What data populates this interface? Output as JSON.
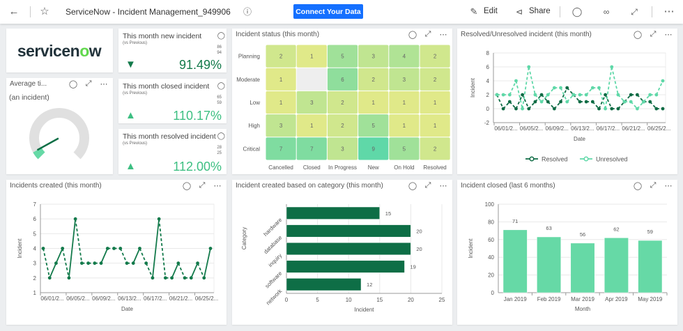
{
  "topbar": {
    "title": "ServiceNow - Incident Management_949906",
    "connect_label": "Connect Your Data",
    "edit_label": "Edit",
    "share_label": "Share",
    "icons": {
      "back": "arrow-left-icon",
      "star": "star-icon",
      "info": "info-icon",
      "edit": "pencil-icon",
      "share": "share-icon",
      "comment": "comment-icon",
      "view": "glasses-icon",
      "expand": "expand-icon",
      "more": "more-icon"
    }
  },
  "logo": {
    "text": "servicenow"
  },
  "gauge": {
    "title": "Average ti...",
    "subtitle": "(an incident)",
    "level": 0.06,
    "colors": {
      "track": "#e0e0e0",
      "fill": "#66d9a6",
      "needle": "#0b6e45"
    }
  },
  "kpis": [
    {
      "title": "This month new incident",
      "sub": "(vs Previous)",
      "current": "86",
      "previous": "94",
      "value": "91.49%",
      "direction": "down",
      "color": "#137a4b"
    },
    {
      "title": "This month closed incident",
      "sub": "(vs Previous)",
      "current": "65",
      "previous": "59",
      "value": "110.17%",
      "direction": "up",
      "color": "#3dbf82"
    },
    {
      "title": "This month resolved incident",
      "sub": "(vs Previous)",
      "current": "28",
      "previous": "25",
      "value": "112.00%",
      "direction": "up",
      "color": "#3dbf82"
    }
  ],
  "chart_data": [
    {
      "id": "heatmap",
      "type": "heatmap",
      "title": "Incident status (this month)",
      "rows": [
        "Planning",
        "Moderate",
        "Low",
        "High",
        "Critical"
      ],
      "columns": [
        "Cancelled",
        "Closed",
        "In Progress",
        "New",
        "On Hold",
        "Resolved"
      ],
      "values": [
        [
          2,
          1,
          5,
          3,
          4,
          2
        ],
        [
          1,
          null,
          6,
          2,
          3,
          2
        ],
        [
          1,
          3,
          2,
          1,
          1,
          1
        ],
        [
          3,
          1,
          2,
          5,
          1,
          1
        ],
        [
          7,
          7,
          3,
          9,
          5,
          2
        ]
      ],
      "color_low": "#e0e989",
      "color_high": "#5fd8a8",
      "color_empty": "#eeeeee"
    },
    {
      "id": "resolved",
      "type": "line",
      "title": "Resolved/Unresolved incident (this month)",
      "xlabel": "Date",
      "ylabel": "Incident",
      "ylim": [
        -2,
        8
      ],
      "yticks": [
        -2,
        0,
        2,
        4,
        6,
        8
      ],
      "xtick_labels": [
        "06/01/2...",
        "06/05/2...",
        "06/09/2...",
        "06/13/2...",
        "06/17/2...",
        "06/21/2...",
        "06/25/2..."
      ],
      "x": [
        "06/01",
        "06/02",
        "06/03",
        "06/04",
        "06/05",
        "06/06",
        "06/07",
        "06/08",
        "06/09",
        "06/10",
        "06/11",
        "06/12",
        "06/13",
        "06/14",
        "06/15",
        "06/16",
        "06/17",
        "06/18",
        "06/19",
        "06/20",
        "06/21",
        "06/22",
        "06/23",
        "06/24",
        "06/25",
        "06/26",
        "06/27"
      ],
      "series": [
        {
          "name": "Resolved",
          "color": "#0e6b44",
          "values": [
            2,
            0,
            1,
            0,
            2,
            0,
            1,
            2,
            1,
            0,
            1,
            3,
            2,
            1,
            1,
            1,
            0,
            2,
            0,
            0,
            1,
            2,
            2,
            1,
            1,
            0,
            0
          ]
        },
        {
          "name": "Unresolved",
          "color": "#5fd8a8",
          "values": [
            2,
            2,
            2,
            4,
            0,
            6,
            2,
            1,
            2,
            3,
            3,
            1,
            2,
            2,
            2,
            3,
            3,
            0,
            6,
            2,
            1,
            1,
            0,
            1,
            2,
            2,
            4
          ]
        }
      ],
      "grid": true,
      "legend": "bottom"
    },
    {
      "id": "created",
      "type": "line",
      "title": "Incidents created (this month)",
      "xlabel": "Date",
      "ylabel": "Incident",
      "ylim": [
        1,
        7
      ],
      "yticks": [
        1,
        2,
        3,
        4,
        5,
        6,
        7
      ],
      "xtick_labels": [
        "06/01/2...",
        "06/05/2...",
        "06/09/2...",
        "06/13/2...",
        "06/17/2...",
        "06/21/2...",
        "06/25/2..."
      ],
      "x": [
        "06/01",
        "06/02",
        "06/03",
        "06/04",
        "06/05",
        "06/06",
        "06/07",
        "06/08",
        "06/09",
        "06/10",
        "06/11",
        "06/12",
        "06/13",
        "06/14",
        "06/15",
        "06/16",
        "06/17",
        "06/18",
        "06/19",
        "06/20",
        "06/21",
        "06/22",
        "06/23",
        "06/24",
        "06/25",
        "06/26",
        "06/27"
      ],
      "series": [
        {
          "color": "#137a4b",
          "values": [
            4,
            2,
            3,
            4,
            2,
            6,
            3,
            3,
            3,
            3,
            4,
            4,
            4,
            3,
            3,
            4,
            3,
            2,
            6,
            2,
            2,
            3,
            2,
            2,
            3,
            2,
            4
          ]
        }
      ],
      "grid": true
    },
    {
      "id": "category",
      "type": "bar",
      "orientation": "horizontal",
      "title": "Incident created based on category (this month)",
      "xlabel": "Incident",
      "ylabel": "Category",
      "categories": [
        "hardware",
        "database",
        "inquiry",
        "software",
        "network"
      ],
      "values": [
        15,
        20,
        20,
        19,
        12
      ],
      "xlim": [
        0,
        25
      ],
      "xticks": [
        0,
        5,
        10,
        15,
        20,
        25
      ],
      "color": "#0e6e46",
      "grid": true
    },
    {
      "id": "closed",
      "type": "bar",
      "title": "Incident closed (last 6 months)",
      "xlabel": "Month",
      "ylabel": "Incident",
      "categories": [
        "Jan 2019",
        "Feb 2019",
        "Mar 2019",
        "Apr 2019",
        "May 2019"
      ],
      "values": [
        71,
        63,
        56,
        62,
        59
      ],
      "ylim": [
        0,
        100
      ],
      "yticks": [
        0,
        20,
        40,
        60,
        80,
        100
      ],
      "color": "#66d9a6",
      "grid": true
    }
  ]
}
